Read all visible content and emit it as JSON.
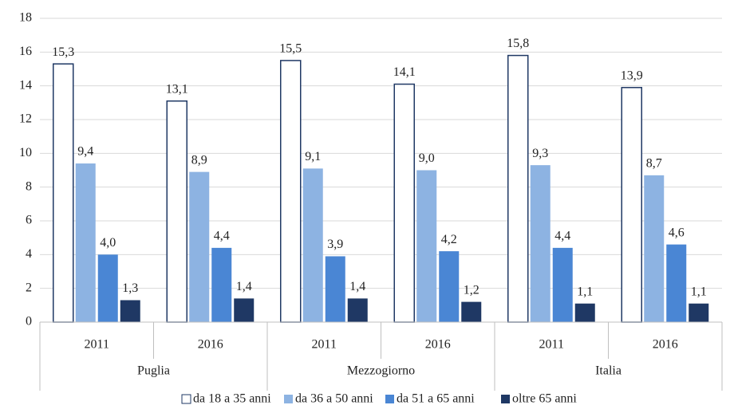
{
  "chart_data": {
    "type": "bar",
    "categories": [
      "2011",
      "2016",
      "2011",
      "2016",
      "2011",
      "2016"
    ],
    "groups": [
      "Puglia",
      "Mezzogiorno",
      "Italia"
    ],
    "series": [
      {
        "name": "da 18 a 35 anni",
        "color": "#ffffff",
        "values": [
          15.3,
          13.1,
          15.5,
          14.1,
          15.8,
          13.9
        ],
        "value_labels": [
          "15,3",
          "13,1",
          "15,5",
          "14,1",
          "15,8",
          "13,9"
        ]
      },
      {
        "name": "da 36 a 50 anni",
        "color": "#8db3e2",
        "values": [
          9.4,
          8.9,
          9.1,
          9.0,
          9.3,
          8.7
        ],
        "value_labels": [
          "9,4",
          "8,9",
          "9,1",
          "9,0",
          "9,3",
          "8,7"
        ]
      },
      {
        "name": "da 51 a 65 anni",
        "color": "#4a86d4",
        "values": [
          4.0,
          4.4,
          3.9,
          4.2,
          4.4,
          4.6
        ],
        "value_labels": [
          "4,0",
          "4,4",
          "3,9",
          "4,2",
          "4,4",
          "4,6"
        ]
      },
      {
        "name": "oltre 65 anni",
        "color": "#1f3864",
        "values": [
          1.3,
          1.4,
          1.4,
          1.2,
          1.1,
          1.1
        ],
        "value_labels": [
          "1,3",
          "1,4",
          "1,4",
          "1,2",
          "1,1",
          "1,1"
        ]
      }
    ],
    "ylim": [
      0,
      18
    ],
    "yticks": [
      0,
      2,
      4,
      6,
      8,
      10,
      12,
      14,
      16,
      18
    ],
    "grid": true,
    "legend": "bottom"
  }
}
